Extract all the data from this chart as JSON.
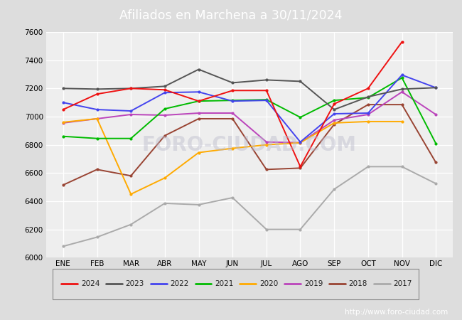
{
  "title": "Afiliados en Marchena a 30/11/2024",
  "ylim": [
    6000,
    7600
  ],
  "yticks": [
    6000,
    6200,
    6400,
    6600,
    6800,
    7000,
    7200,
    7400,
    7600
  ],
  "months": [
    "ENE",
    "FEB",
    "MAR",
    "ABR",
    "MAY",
    "JUN",
    "JUL",
    "AGO",
    "SEP",
    "OCT",
    "NOV",
    "DIC"
  ],
  "title_bg_color": "#4da6d9",
  "footer_bg_color": "#4488bb",
  "plot_bg_color": "#eeeeee",
  "fig_bg_color": "#dddddd",
  "watermark": "FORO-CIUDAD.COM",
  "url": "http://www.foro-ciudad.com",
  "series": {
    "2024": {
      "color": "#ee1111",
      "data": [
        7050,
        7160,
        7200,
        7190,
        7110,
        7185,
        7185,
        6645,
        7090,
        7200,
        7530,
        null
      ]
    },
    "2023": {
      "color": "#555555",
      "data": [
        7200,
        7195,
        7200,
        7215,
        7335,
        7240,
        7260,
        7250,
        7050,
        7140,
        7195,
        7205
      ]
    },
    "2022": {
      "color": "#4444ee",
      "data": [
        7100,
        7050,
        7040,
        7170,
        7175,
        7110,
        7115,
        6820,
        7020,
        7025,
        7295,
        7205
      ]
    },
    "2021": {
      "color": "#00bb00",
      "data": [
        6860,
        6845,
        6845,
        7055,
        7110,
        7115,
        7120,
        6995,
        7115,
        7135,
        7275,
        6810
      ]
    },
    "2020": {
      "color": "#ffaa00",
      "data": [
        6960,
        6985,
        6450,
        6565,
        6745,
        6775,
        6800,
        6815,
        6955,
        6965,
        6965,
        null
      ]
    },
    "2019": {
      "color": "#bb44bb",
      "data": [
        6955,
        6985,
        7015,
        7010,
        7025,
        7025,
        6820,
        6815,
        6975,
        7015,
        7175,
        7015
      ]
    },
    "2018": {
      "color": "#994433",
      "data": [
        6515,
        6625,
        6580,
        6865,
        6985,
        6985,
        6625,
        6635,
        6945,
        7085,
        7085,
        6675
      ]
    },
    "2017": {
      "color": "#aaaaaa",
      "data": [
        6080,
        6145,
        6235,
        6385,
        6375,
        6425,
        6200,
        6200,
        6485,
        6645,
        6645,
        6525
      ]
    }
  },
  "legend_items": [
    [
      "2024",
      "#ee1111"
    ],
    [
      "2023",
      "#555555"
    ],
    [
      "2022",
      "#4444ee"
    ],
    [
      "2021",
      "#00bb00"
    ],
    [
      "2020",
      "#ffaa00"
    ],
    [
      "2019",
      "#bb44bb"
    ],
    [
      "2018",
      "#994433"
    ],
    [
      "2017",
      "#aaaaaa"
    ]
  ]
}
